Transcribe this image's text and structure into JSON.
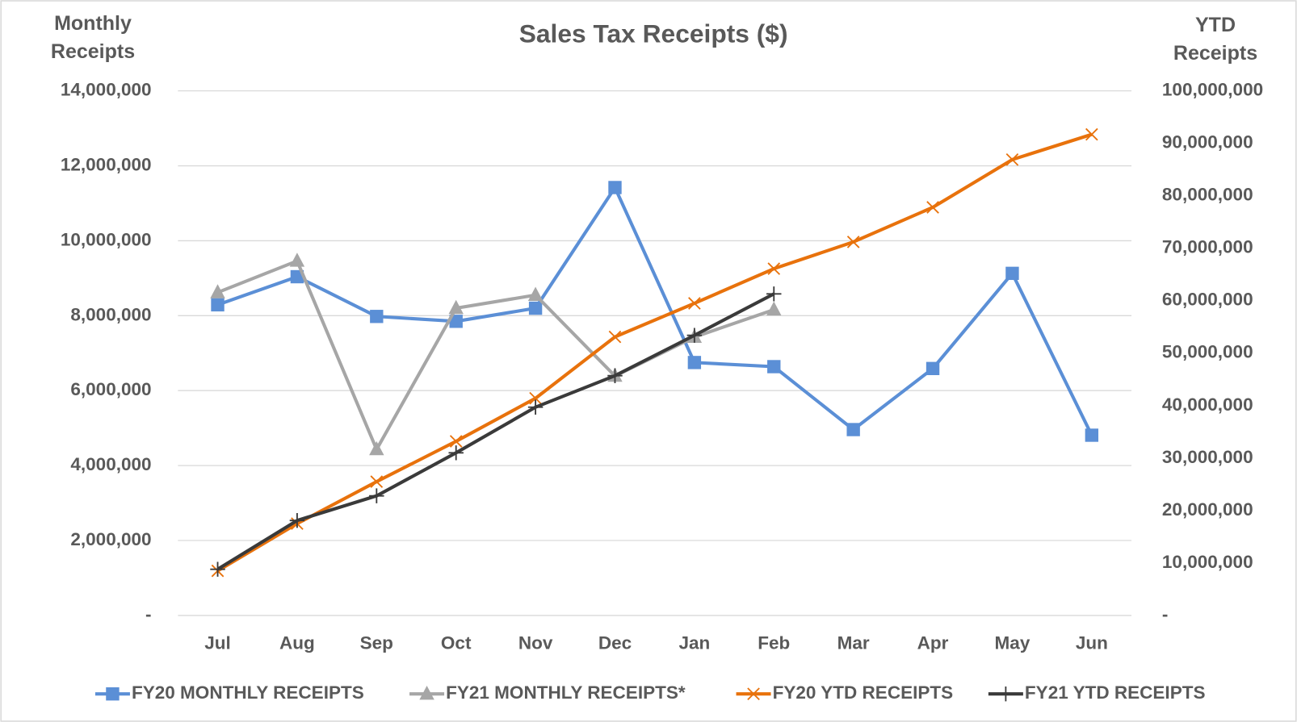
{
  "chart_data": {
    "type": "line",
    "title": "Sales Tax Receipts ($)",
    "y_label": "Monthly Receipts",
    "y2_label": "YTD Receipts",
    "categories": [
      "Jul",
      "Aug",
      "Sep",
      "Oct",
      "Nov",
      "Dec",
      "Jan",
      "Feb",
      "Mar",
      "Apr",
      "May",
      "Jun"
    ],
    "series": [
      {
        "name": "FY20 MONTHLY RECEIPTS",
        "color": "#5b8fd6",
        "marker": "square",
        "values": [
          8290000,
          9040000,
          7980000,
          7850000,
          8200000,
          11420000,
          6750000,
          6640000,
          4960000,
          6590000,
          9130000,
          4810000
        ]
      },
      {
        "name": "FY21 MONTHLY RECEIPTS*",
        "color": "#a6a6a6",
        "marker": "triangle",
        "values": [
          8620000,
          9460000,
          4430000,
          8200000,
          8550000,
          6390000,
          7430000,
          8160000,
          null,
          null,
          null,
          null
        ]
      },
      {
        "name": "FY20 YTD RECEIPTS",
        "color": "#e8720c",
        "marker": "x",
        "axis": "y2",
        "values": [
          8500000,
          17500000,
          25500000,
          33200000,
          41400000,
          53100000,
          59500000,
          66100000,
          71200000,
          77800000,
          86900000,
          91700000
        ]
      },
      {
        "name": "FY21 YTD RECEIPTS",
        "color": "#3a3a3a",
        "marker": "plus",
        "axis": "y2",
        "values": [
          8800000,
          18100000,
          22800000,
          31000000,
          39700000,
          45700000,
          53400000,
          61300000,
          null,
          null,
          null,
          null
        ]
      }
    ],
    "ylim": [
      0,
      14000000
    ],
    "yticks": [
      {
        "value": 0,
        "label": "-"
      },
      {
        "value": 2000000,
        "label": "2,000,000"
      },
      {
        "value": 4000000,
        "label": "4,000,000"
      },
      {
        "value": 6000000,
        "label": "6,000,000"
      },
      {
        "value": 8000000,
        "label": "8,000,000"
      },
      {
        "value": 10000000,
        "label": "10,000,000"
      },
      {
        "value": 12000000,
        "label": "12,000,000"
      },
      {
        "value": 14000000,
        "label": "14,000,000"
      }
    ],
    "y2lim": [
      0,
      100000000
    ],
    "y2ticks": [
      {
        "value": 0,
        "label": "-"
      },
      {
        "value": 10000000,
        "label": "10,000,000"
      },
      {
        "value": 20000000,
        "label": "20,000,000"
      },
      {
        "value": 30000000,
        "label": "30,000,000"
      },
      {
        "value": 40000000,
        "label": "40,000,000"
      },
      {
        "value": 50000000,
        "label": "50,000,000"
      },
      {
        "value": 60000000,
        "label": "60,000,000"
      },
      {
        "value": 70000000,
        "label": "70,000,000"
      },
      {
        "value": 80000000,
        "label": "80,000,000"
      },
      {
        "value": 90000000,
        "label": "90,000,000"
      },
      {
        "value": 100000000,
        "label": "100,000,000"
      }
    ],
    "grid": true,
    "legend": "bottom"
  }
}
